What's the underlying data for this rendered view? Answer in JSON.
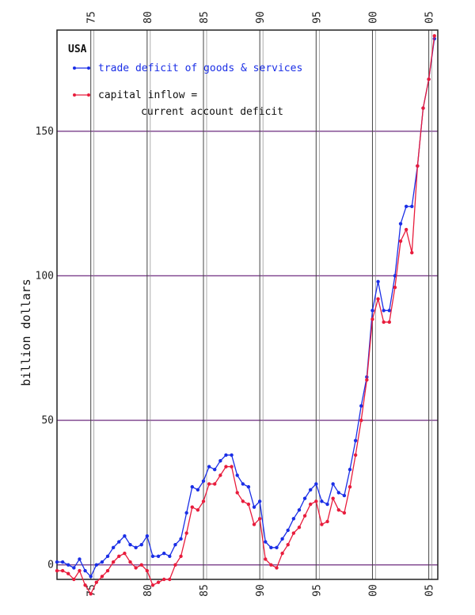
{
  "chart_data": {
    "type": "line",
    "title": "USA",
    "ylabel": "billion dollars",
    "xlabel": "",
    "xlim": [
      1972.0,
      2005.8
    ],
    "ylim": [
      -5,
      185
    ],
    "x_ticks": [
      {
        "value": 1975,
        "label": "75"
      },
      {
        "value": 1980,
        "label": "80"
      },
      {
        "value": 1985,
        "label": "85"
      },
      {
        "value": 1990,
        "label": "90"
      },
      {
        "value": 1995,
        "label": "95"
      },
      {
        "value": 2000,
        "label": "00"
      },
      {
        "value": 2005,
        "label": "05"
      }
    ],
    "y_ticks": [
      {
        "value": 0,
        "label": "0"
      },
      {
        "value": 50,
        "label": "50"
      },
      {
        "value": 100,
        "label": "100"
      },
      {
        "value": 150,
        "label": "150"
      }
    ],
    "grid": true,
    "legend_position": "top-left",
    "series": [
      {
        "name": "trade deficit of goods & services",
        "color": "#1a2ee6",
        "points": [
          [
            1972.0,
            1
          ],
          [
            1972.5,
            1
          ],
          [
            1973.0,
            0
          ],
          [
            1973.5,
            -1
          ],
          [
            1974.0,
            2
          ],
          [
            1974.5,
            -2
          ],
          [
            1975.0,
            -4
          ],
          [
            1975.5,
            0
          ],
          [
            1976.0,
            1
          ],
          [
            1976.5,
            3
          ],
          [
            1977.0,
            6
          ],
          [
            1977.5,
            8
          ],
          [
            1978.0,
            10
          ],
          [
            1978.5,
            7
          ],
          [
            1979.0,
            6
          ],
          [
            1979.5,
            7
          ],
          [
            1980.0,
            10
          ],
          [
            1980.5,
            3
          ],
          [
            1981.0,
            3
          ],
          [
            1981.5,
            4
          ],
          [
            1982.0,
            3
          ],
          [
            1982.5,
            7
          ],
          [
            1983.0,
            9
          ],
          [
            1983.5,
            18
          ],
          [
            1984.0,
            27
          ],
          [
            1984.5,
            26
          ],
          [
            1985.0,
            29
          ],
          [
            1985.5,
            34
          ],
          [
            1986.0,
            33
          ],
          [
            1986.5,
            36
          ],
          [
            1987.0,
            38
          ],
          [
            1987.5,
            38
          ],
          [
            1988.0,
            31
          ],
          [
            1988.5,
            28
          ],
          [
            1989.0,
            27
          ],
          [
            1989.5,
            20
          ],
          [
            1990.0,
            22
          ],
          [
            1990.5,
            8
          ],
          [
            1991.0,
            6
          ],
          [
            1991.5,
            6
          ],
          [
            1992.0,
            9
          ],
          [
            1992.5,
            12
          ],
          [
            1993.0,
            16
          ],
          [
            1993.5,
            19
          ],
          [
            1994.0,
            23
          ],
          [
            1994.5,
            26
          ],
          [
            1995.0,
            28
          ],
          [
            1995.5,
            22
          ],
          [
            1996.0,
            21
          ],
          [
            1996.5,
            28
          ],
          [
            1997.0,
            25
          ],
          [
            1997.5,
            24
          ],
          [
            1998.0,
            33
          ],
          [
            1998.5,
            43
          ],
          [
            1999.0,
            55
          ],
          [
            1999.5,
            65
          ],
          [
            2000.0,
            88
          ],
          [
            2000.5,
            98
          ],
          [
            2001.0,
            88
          ],
          [
            2001.5,
            88
          ],
          [
            2002.0,
            100
          ],
          [
            2002.5,
            118
          ],
          [
            2003.0,
            124
          ],
          [
            2003.5,
            124
          ],
          [
            2004.0,
            138
          ],
          [
            2004.5,
            158
          ],
          [
            2005.0,
            168
          ],
          [
            2005.5,
            182
          ]
        ]
      },
      {
        "name": "capital inflow = current account deficit",
        "color": "#e81c3c",
        "points": [
          [
            1972.0,
            -2
          ],
          [
            1972.5,
            -2
          ],
          [
            1973.0,
            -3
          ],
          [
            1973.5,
            -5
          ],
          [
            1974.0,
            -2
          ],
          [
            1974.5,
            -7
          ],
          [
            1975.0,
            -10
          ],
          [
            1975.5,
            -6
          ],
          [
            1976.0,
            -4
          ],
          [
            1976.5,
            -2
          ],
          [
            1977.0,
            1
          ],
          [
            1977.5,
            3
          ],
          [
            1978.0,
            4
          ],
          [
            1978.5,
            1
          ],
          [
            1979.0,
            -1
          ],
          [
            1979.5,
            0
          ],
          [
            1980.0,
            -2
          ],
          [
            1980.5,
            -7
          ],
          [
            1981.0,
            -6
          ],
          [
            1981.5,
            -5
          ],
          [
            1982.0,
            -5
          ],
          [
            1982.5,
            0
          ],
          [
            1983.0,
            3
          ],
          [
            1983.5,
            11
          ],
          [
            1984.0,
            20
          ],
          [
            1984.5,
            19
          ],
          [
            1985.0,
            22
          ],
          [
            1985.5,
            28
          ],
          [
            1986.0,
            28
          ],
          [
            1986.5,
            31
          ],
          [
            1987.0,
            34
          ],
          [
            1987.5,
            34
          ],
          [
            1988.0,
            25
          ],
          [
            1988.5,
            22
          ],
          [
            1989.0,
            21
          ],
          [
            1989.5,
            14
          ],
          [
            1990.0,
            16
          ],
          [
            1990.5,
            2
          ],
          [
            1991.0,
            0
          ],
          [
            1991.5,
            -1
          ],
          [
            1992.0,
            4
          ],
          [
            1992.5,
            7
          ],
          [
            1993.0,
            11
          ],
          [
            1993.5,
            13
          ],
          [
            1994.0,
            17
          ],
          [
            1994.5,
            21
          ],
          [
            1995.0,
            22
          ],
          [
            1995.5,
            14
          ],
          [
            1996.0,
            15
          ],
          [
            1996.5,
            23
          ],
          [
            1997.0,
            19
          ],
          [
            1997.5,
            18
          ],
          [
            1998.0,
            27
          ],
          [
            1998.5,
            38
          ],
          [
            1999.0,
            50
          ],
          [
            1999.5,
            64
          ],
          [
            2000.0,
            85
          ],
          [
            2000.5,
            92
          ],
          [
            2001.0,
            84
          ],
          [
            2001.5,
            84
          ],
          [
            2002.0,
            96
          ],
          [
            2002.5,
            112
          ],
          [
            2003.0,
            116
          ],
          [
            2003.5,
            108
          ],
          [
            2004.0,
            138
          ],
          [
            2004.5,
            158
          ],
          [
            2005.0,
            168
          ],
          [
            2005.5,
            183
          ]
        ]
      }
    ],
    "legend": {
      "title": "USA",
      "items": [
        {
          "text_lines": [
            "trade deficit of goods & services"
          ],
          "color": "#1a2ee6"
        },
        {
          "text_lines": [
            "capital inflow =",
            "current account deficit"
          ],
          "color": "#e81c3c"
        }
      ]
    }
  }
}
